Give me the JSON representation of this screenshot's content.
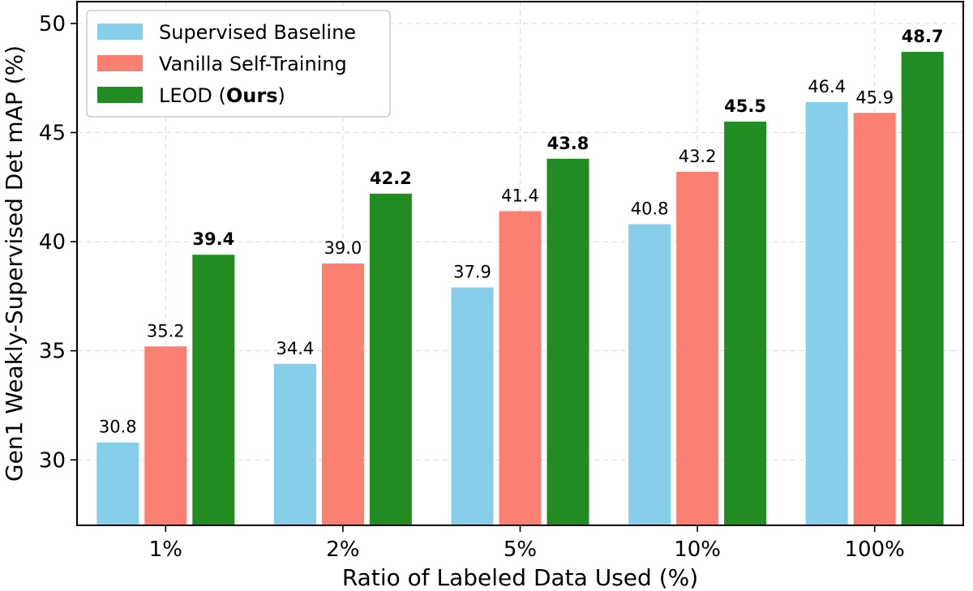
{
  "chart_data": {
    "type": "bar",
    "title": "",
    "xlabel": "Ratio of Labeled Data Used (%)",
    "ylabel": "Gen1 Weakly-Supervised Det mAP (%)",
    "categories": [
      "1%",
      "2%",
      "5%",
      "10%",
      "100%"
    ],
    "ylim": [
      27.0,
      51.0
    ],
    "yticks": [
      30,
      35,
      40,
      45,
      50
    ],
    "grid": true,
    "legend_position": "top-left",
    "series": [
      {
        "name": "Supervised Baseline",
        "color": "#87ceeb",
        "values": [
          30.8,
          34.4,
          37.9,
          40.8,
          46.4
        ],
        "labels": [
          "30.8",
          "34.4",
          "37.9",
          "40.8",
          "46.4"
        ],
        "bold_labels": false
      },
      {
        "name": "Vanilla Self-Training",
        "color": "#fa8072",
        "values": [
          35.2,
          39.0,
          41.4,
          43.2,
          45.9
        ],
        "labels": [
          "35.2",
          "39.0",
          "41.4",
          "43.2",
          "45.9"
        ],
        "bold_labels": false
      },
      {
        "name": "LEOD (Ours)",
        "name_prefix": "LEOD (",
        "name_bold": "Ours",
        "name_suffix": ")",
        "color": "#228b22",
        "values": [
          39.4,
          42.2,
          43.8,
          45.5,
          48.7
        ],
        "labels": [
          "39.4",
          "42.2",
          "43.8",
          "45.5",
          "48.7"
        ],
        "bold_labels": true
      }
    ]
  }
}
